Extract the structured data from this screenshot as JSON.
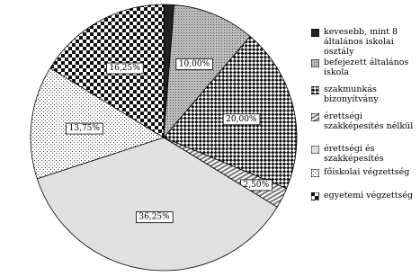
{
  "chart_data": {
    "type": "pie",
    "categories": [
      "kevesebb, mint 8 általános iskolai osztály",
      "befejezett általános iskola",
      "szakmunkás bizonyítvány",
      "érettségi szakképesítés nélkül",
      "érettségi és szakképesítés",
      "főiskolai végzettség",
      "egyetemi végzettség"
    ],
    "values": [
      1.25,
      10,
      20,
      2.5,
      36.25,
      13.75,
      16.25
    ],
    "value_labels": [
      null,
      "10,00%",
      "20,00%",
      "2,50%",
      "36,25%",
      "13,75%",
      "16,25%"
    ]
  }
}
